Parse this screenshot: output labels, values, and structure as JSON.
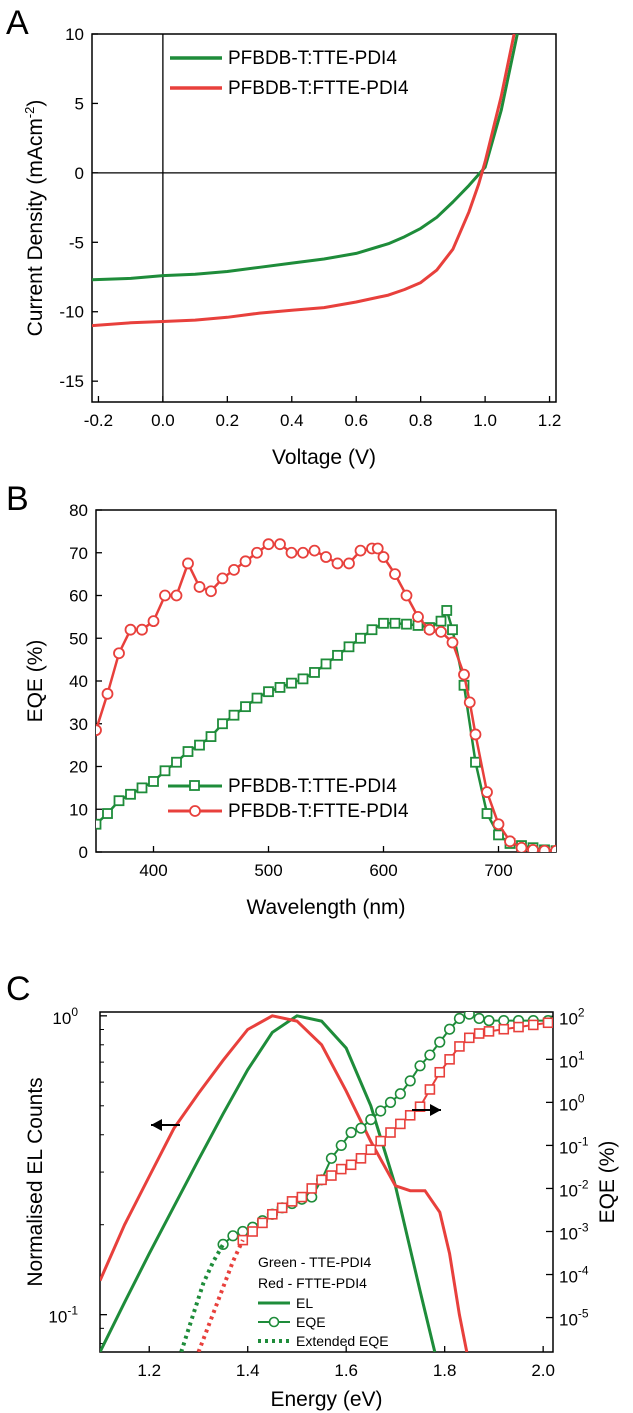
{
  "colors": {
    "green": "#1e8c3a",
    "red": "#e8403c",
    "axis": "#000000"
  },
  "chart_data": [
    {
      "panel": "A",
      "type": "line",
      "xlabel": "Voltage (V)",
      "ylabel_main": "Current Density (mAcm",
      "ylabel_sup": "-2",
      "ylabel_close": ")",
      "xlim": [
        -0.22,
        1.22
      ],
      "ylim": [
        -16.5,
        10
      ],
      "xticks": [
        -0.2,
        0.0,
        0.2,
        0.4,
        0.6,
        0.8,
        1.0,
        1.2
      ],
      "xtick_labels": [
        "-0.2",
        "0.0",
        "0.2",
        "0.4",
        "0.6",
        "0.8",
        "1.0",
        "1.2"
      ],
      "yticks": [
        -15,
        -10,
        -5,
        0,
        5,
        10
      ],
      "ytick_labels": [
        "-15",
        "-10",
        "-5",
        "0",
        "5",
        "10"
      ],
      "zero_lines": true,
      "legend_position": "top-center",
      "series": [
        {
          "name": "PFBDB-T:TTE-PDI4",
          "color_key": "green",
          "x": [
            -0.22,
            -0.1,
            0.0,
            0.1,
            0.2,
            0.3,
            0.4,
            0.5,
            0.6,
            0.7,
            0.75,
            0.8,
            0.85,
            0.9,
            0.95,
            1.0,
            1.05,
            1.1
          ],
          "y": [
            -7.7,
            -7.6,
            -7.4,
            -7.3,
            -7.1,
            -6.8,
            -6.5,
            -6.2,
            -5.8,
            -5.1,
            -4.6,
            -4.0,
            -3.2,
            -2.1,
            -0.9,
            0.4,
            4.5,
            10.0
          ]
        },
        {
          "name": "PFBDB-T:FTTE-PDI4",
          "color_key": "red",
          "x": [
            -0.22,
            -0.1,
            0.0,
            0.1,
            0.2,
            0.3,
            0.4,
            0.5,
            0.6,
            0.7,
            0.75,
            0.8,
            0.85,
            0.9,
            0.95,
            0.98,
            1.0,
            1.05,
            1.09
          ],
          "y": [
            -11.0,
            -10.8,
            -10.7,
            -10.6,
            -10.4,
            -10.1,
            -9.9,
            -9.7,
            -9.3,
            -8.8,
            -8.4,
            -7.9,
            -7.0,
            -5.5,
            -2.8,
            -0.8,
            0.8,
            5.5,
            10.0
          ]
        }
      ]
    },
    {
      "panel": "B",
      "type": "line",
      "xlabel": "Wavelength (nm)",
      "ylabel": "EQE (%)",
      "xlim": [
        350,
        750
      ],
      "ylim": [
        0,
        80
      ],
      "xticks": [
        400,
        500,
        600,
        700
      ],
      "xtick_labels": [
        "400",
        "500",
        "600",
        "700"
      ],
      "yticks": [
        0,
        10,
        20,
        30,
        40,
        50,
        60,
        70,
        80
      ],
      "ytick_labels": [
        "0",
        "10",
        "20",
        "30",
        "40",
        "50",
        "60",
        "70",
        "80"
      ],
      "legend_position": "bottom-center",
      "series": [
        {
          "name": "PFBDB-T:TTE-PDI4",
          "color_key": "green",
          "marker": "square",
          "x": [
            350,
            360,
            370,
            380,
            390,
            400,
            410,
            420,
            430,
            440,
            450,
            460,
            470,
            480,
            490,
            500,
            510,
            520,
            530,
            540,
            550,
            560,
            570,
            580,
            590,
            600,
            610,
            620,
            630,
            640,
            650,
            655,
            660,
            670,
            680,
            690,
            700,
            710,
            720,
            730,
            740,
            750
          ],
          "y": [
            6.5,
            9,
            12,
            13.5,
            15,
            16.5,
            19,
            21,
            23.5,
            25,
            27,
            30,
            32,
            34,
            36,
            37.5,
            38.5,
            39.5,
            40.5,
            42,
            44,
            46,
            48,
            50,
            52,
            53.5,
            53.5,
            53.3,
            53,
            52.5,
            54,
            56.5,
            52,
            39,
            21,
            9,
            4,
            2,
            1.5,
            1,
            0.5,
            0.3
          ]
        },
        {
          "name": "PFBDB-T:FTTE-PDI4",
          "color_key": "red",
          "marker": "circle",
          "x": [
            350,
            360,
            370,
            380,
            390,
            400,
            410,
            420,
            430,
            440,
            450,
            460,
            470,
            480,
            490,
            500,
            510,
            520,
            530,
            540,
            550,
            560,
            570,
            580,
            590,
            595,
            600,
            610,
            620,
            630,
            640,
            650,
            660,
            670,
            675,
            680,
            690,
            700,
            710,
            720,
            730,
            740,
            750
          ],
          "y": [
            28.5,
            37,
            46.5,
            52,
            52,
            54,
            60,
            60,
            67.5,
            62,
            61,
            64,
            66,
            68,
            70,
            72,
            72,
            70,
            70,
            70.5,
            69,
            67.5,
            67.5,
            70.5,
            71,
            71,
            69,
            65,
            60,
            55,
            52,
            51.5,
            49,
            41.5,
            35,
            27.5,
            14,
            6.5,
            2.5,
            1,
            0.5,
            0.3,
            0.3
          ]
        }
      ]
    },
    {
      "panel": "C",
      "type": "line",
      "xlabel": "Energy (eV)",
      "ylabel_left": "Normalised EL Counts",
      "ylabel_right": "EQE (%)",
      "xlim": [
        1.1,
        2.02
      ],
      "xticks": [
        1.2,
        1.4,
        1.6,
        1.8,
        2.0
      ],
      "xtick_labels": [
        "1.2",
        "1.4",
        "1.6",
        "1.8",
        "2.0"
      ],
      "left_axis": {
        "scale": "log",
        "range": [
          0.075,
          1.03
        ],
        "ticks": [
          0.1,
          1
        ],
        "tick_labels": [
          {
            "base": "10",
            "exp": "-1"
          },
          {
            "base": "10",
            "exp": "0"
          }
        ]
      },
      "right_axis": {
        "scale": "log",
        "range_log10": [
          -5.8,
          2.1
        ],
        "ticks_log10": [
          -5,
          -4,
          -3,
          -2,
          -1,
          0,
          1,
          2
        ],
        "tick_labels": [
          {
            "base": "10",
            "exp": "-5"
          },
          {
            "base": "10",
            "exp": "-4"
          },
          {
            "base": "10",
            "exp": "-3"
          },
          {
            "base": "10",
            "exp": "-2"
          },
          {
            "base": "10",
            "exp": "-1"
          },
          {
            "base": "10",
            "exp": "0"
          },
          {
            "base": "10",
            "exp": "1"
          },
          {
            "base": "10",
            "exp": "2"
          }
        ]
      },
      "legend": {
        "line1": "Green - TTE-PDI4",
        "line2": "Red - FTTE-PDI4",
        "el": "EL",
        "eqe": "EQE",
        "extended": "Extended EQE"
      },
      "arrows": [
        {
          "direction": "left",
          "axis": "left"
        },
        {
          "direction": "right",
          "axis": "right"
        }
      ],
      "series": [
        {
          "name": "EL",
          "group": "TTE-PDI4",
          "color_key": "green",
          "axis": "left",
          "style": "solid",
          "x": [
            1.1,
            1.15,
            1.2,
            1.25,
            1.3,
            1.35,
            1.4,
            1.45,
            1.5,
            1.55,
            1.6,
            1.65,
            1.7,
            1.75,
            1.78
          ],
          "y": [
            0.075,
            0.11,
            0.16,
            0.23,
            0.33,
            0.47,
            0.66,
            0.88,
            1.0,
            0.96,
            0.78,
            0.5,
            0.27,
            0.12,
            0.075
          ]
        },
        {
          "name": "EL",
          "group": "FTTE-PDI4",
          "color_key": "red",
          "axis": "left",
          "style": "solid",
          "x": [
            1.1,
            1.15,
            1.2,
            1.25,
            1.3,
            1.35,
            1.4,
            1.45,
            1.5,
            1.55,
            1.6,
            1.65,
            1.7,
            1.73,
            1.76,
            1.79,
            1.81,
            1.83,
            1.845
          ],
          "y": [
            0.13,
            0.2,
            0.29,
            0.42,
            0.55,
            0.71,
            0.9,
            1.0,
            0.96,
            0.8,
            0.56,
            0.38,
            0.27,
            0.26,
            0.26,
            0.22,
            0.16,
            0.1,
            0.075
          ]
        },
        {
          "name": "EQE",
          "group": "TTE-PDI4",
          "color_key": "green",
          "axis": "right",
          "marker": "circle",
          "x": [
            1.35,
            1.37,
            1.39,
            1.41,
            1.43,
            1.45,
            1.47,
            1.49,
            1.51,
            1.53,
            1.55,
            1.57,
            1.59,
            1.61,
            1.63,
            1.65,
            1.67,
            1.69,
            1.71,
            1.73,
            1.75,
            1.77,
            1.79,
            1.81,
            1.83,
            1.85,
            1.87,
            1.89,
            1.92,
            1.95,
            1.98,
            2.01
          ],
          "y_log10": [
            -3.3,
            -3.1,
            -3.0,
            -2.9,
            -2.75,
            -2.6,
            -2.45,
            -2.35,
            -2.25,
            -2.2,
            -1.8,
            -1.3,
            -1.0,
            -0.7,
            -0.6,
            -0.4,
            -0.2,
            0.0,
            0.2,
            0.5,
            0.85,
            1.1,
            1.4,
            1.7,
            1.95,
            2.05,
            1.95,
            1.9,
            1.9,
            1.9,
            1.9,
            1.9
          ]
        },
        {
          "name": "EQE",
          "group": "FTTE-PDI4",
          "color_key": "red",
          "axis": "right",
          "marker": "square",
          "x": [
            1.39,
            1.41,
            1.43,
            1.45,
            1.47,
            1.49,
            1.51,
            1.53,
            1.55,
            1.57,
            1.59,
            1.61,
            1.63,
            1.65,
            1.67,
            1.69,
            1.71,
            1.73,
            1.75,
            1.77,
            1.79,
            1.81,
            1.83,
            1.85,
            1.87,
            1.89,
            1.92,
            1.95,
            1.98,
            2.01
          ],
          "y_log10": [
            -3.2,
            -3.0,
            -2.8,
            -2.6,
            -2.45,
            -2.3,
            -2.2,
            -2.0,
            -1.8,
            -1.7,
            -1.55,
            -1.45,
            -1.3,
            -1.1,
            -0.9,
            -0.7,
            -0.5,
            -0.3,
            -0.1,
            0.3,
            0.7,
            1.0,
            1.3,
            1.5,
            1.6,
            1.65,
            1.7,
            1.75,
            1.8,
            1.85
          ]
        },
        {
          "name": "Extended EQE",
          "group": "TTE-PDI4",
          "color_key": "green",
          "axis": "right",
          "style": "dotted",
          "x": [
            1.265,
            1.29,
            1.31,
            1.33,
            1.35
          ],
          "y_log10": [
            -5.8,
            -4.9,
            -4.2,
            -3.7,
            -3.3
          ]
        },
        {
          "name": "Extended EQE",
          "group": "FTTE-PDI4",
          "color_key": "red",
          "axis": "right",
          "style": "dotted",
          "x": [
            1.3,
            1.33,
            1.35,
            1.37,
            1.39
          ],
          "y_log10": [
            -5.8,
            -4.9,
            -4.3,
            -3.7,
            -3.2
          ]
        }
      ]
    }
  ]
}
